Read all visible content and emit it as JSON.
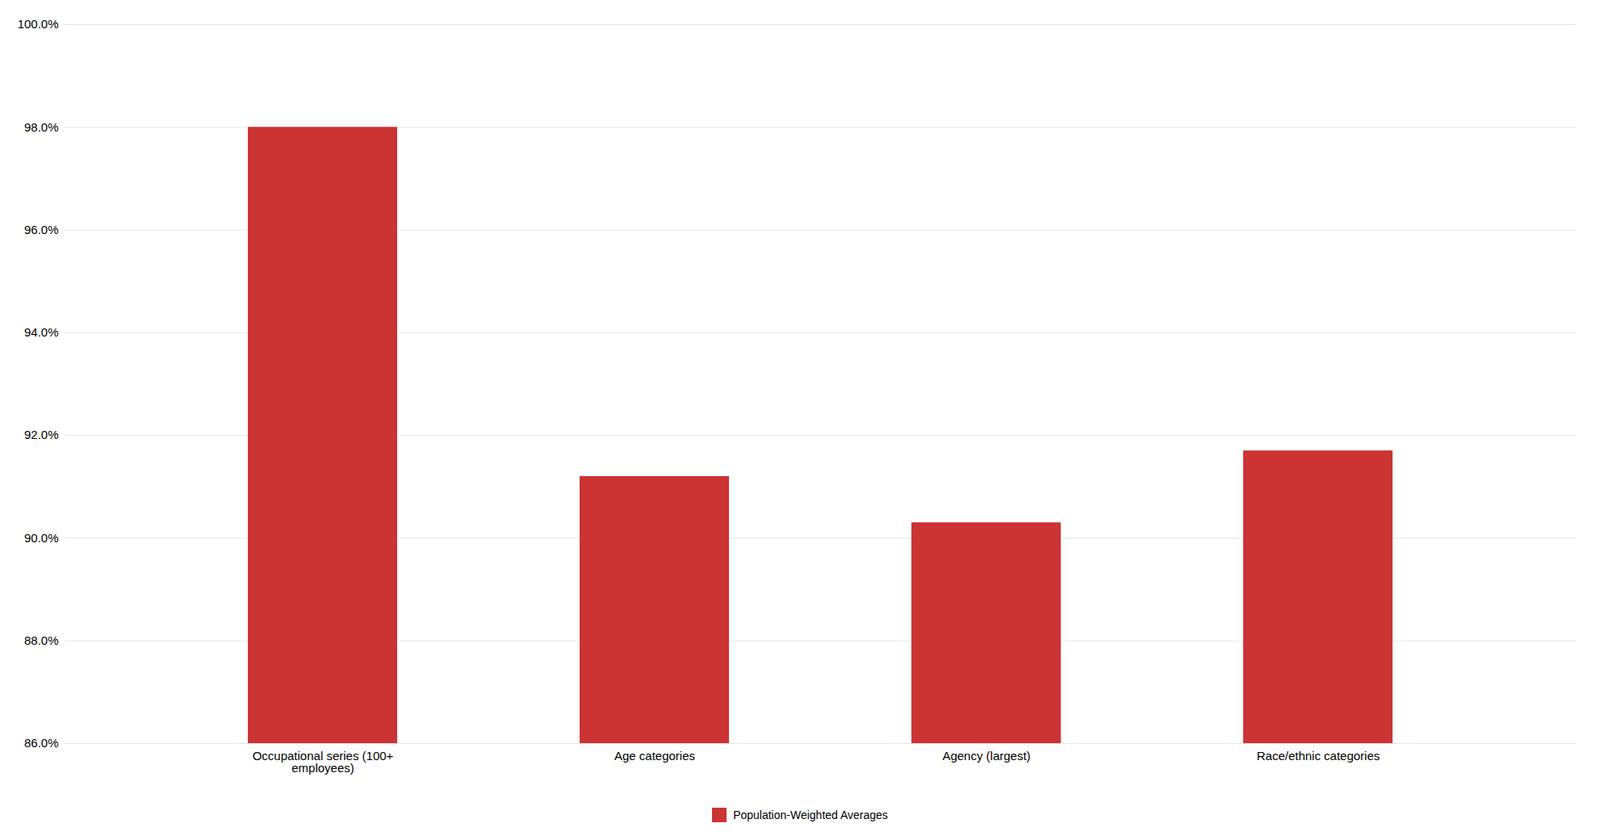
{
  "chart_data": {
    "type": "bar",
    "categories": [
      "Occupational series (100+\nemployees)",
      "Age categories",
      "Agency (largest)",
      "Race/ethnic categories"
    ],
    "series": [
      {
        "name": "Population-Weighted Averages",
        "color": "#CC3333",
        "values": [
          98.0,
          91.2,
          90.3,
          91.7
        ]
      }
    ],
    "ylim": [
      86.0,
      100.0
    ],
    "yticks": [
      {
        "value": 86.0,
        "label": "86.0%"
      },
      {
        "value": 88.0,
        "label": "88.0%"
      },
      {
        "value": 90.0,
        "label": "90.0%"
      },
      {
        "value": 92.0,
        "label": "92.0%"
      },
      {
        "value": 94.0,
        "label": "94.0%"
      },
      {
        "value": 96.0,
        "label": "96.0%"
      },
      {
        "value": 98.0,
        "label": "98.0%"
      },
      {
        "value": 100.0,
        "label": "100.0%"
      }
    ],
    "grid": true,
    "legend": "bottom"
  }
}
